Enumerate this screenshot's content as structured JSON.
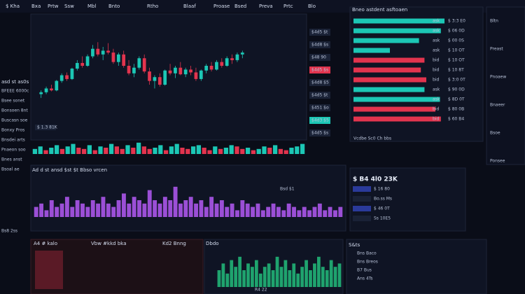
{
  "header": {
    "items": [
      "$ Kha",
      "Bxa",
      "Prtw",
      "Ssw",
      "Mbl",
      "Bnto",
      "Rtho",
      "Blaaf",
      "Proase",
      "Bsed",
      "Preva",
      "Prtc",
      "Blo"
    ]
  },
  "sidebar": {
    "title": "asd st as0s",
    "rows": [
      "BFEEE 6000c",
      "Bsee sonet",
      "Bonsoen 8nt",
      "Buscasn soe",
      "Bonxy Pros",
      "Bnsdei arts",
      "Pnaeon soo",
      "Bnes anst",
      "Bsoal ae"
    ],
    "footer": "Bs8 2ss"
  },
  "price_axis": [
    {
      "text": "$4d5 $t",
      "kind": "plain"
    },
    {
      "text": "$4d8 $s",
      "kind": "plain"
    },
    {
      "text": "$48 90",
      "kind": "plain"
    },
    {
      "text": "$4d5 $s",
      "kind": "red"
    },
    {
      "text": "$4d8 $5",
      "kind": "plain"
    },
    {
      "text": "$4d5 $t",
      "kind": "plain"
    },
    {
      "text": "$451 $o",
      "kind": "plain"
    },
    {
      "text": "$4d3 $5",
      "kind": "teal"
    },
    {
      "text": "$4d5 $s",
      "kind": "plain"
    }
  ],
  "chart_labels": {
    "main_tag": "$ 1.3 81K",
    "volume_title": "Ad d st ansd $st $t Bbso vrcen",
    "volume_tag": "Bsd $1",
    "bottom_left": "A4 # kalo",
    "bottom_mid": "Vbw #kkd bka",
    "bottom_mid2": "Kd2 Bnng",
    "bottom_chart": "Dbdo",
    "bottom_foot": "R4 22"
  },
  "order_book": {
    "title": "Bneo astdent asftoaen",
    "rows": [
      {
        "side": "ask",
        "depth": 100,
        "value": "$ 3:3 E0"
      },
      {
        "side": "ask",
        "depth": 96,
        "value": "$ 06 0D"
      },
      {
        "side": "ask",
        "depth": 72,
        "value": "$ 00 0S"
      },
      {
        "side": "ask",
        "depth": 40,
        "value": "$ 10 OT"
      },
      {
        "side": "bid",
        "depth": 78,
        "value": "$ 10 OT"
      },
      {
        "side": "bid",
        "depth": 74,
        "value": "$ 10 8T"
      },
      {
        "side": "bid",
        "depth": 80,
        "value": "$ 3:0 0T"
      },
      {
        "side": "ask",
        "depth": 78,
        "value": "$ 90 0D"
      },
      {
        "side": "ask",
        "depth": 95,
        "value": "$ 8D 0T"
      },
      {
        "side": "bid",
        "depth": 90,
        "value": "$ 80 0B"
      },
      {
        "side": "bid",
        "depth": 96,
        "value": "$ 60 B4"
      }
    ],
    "footer": "Vcdbe Sc0 Ch bbs"
  },
  "right_col": {
    "items": [
      "Bltn",
      "Preast",
      "Pnoaew",
      "Bnaeer",
      "Bsoe",
      "Ponsee"
    ]
  },
  "ticker": {
    "title": "$ B4 4l0 23K",
    "rows": [
      "$ 16 80",
      "Bo.ss Ms",
      "$ 46 0T",
      "Ss 10E5"
    ]
  },
  "bottom_list": {
    "title": "S&ts",
    "rows": [
      "Bns Baco",
      "Bns Breos",
      "B7 Bus",
      "Ans 4Ts"
    ]
  },
  "chart_data": [
    {
      "type": "candlestick",
      "ylim": [
        0,
        100
      ],
      "up_color": "#1cc7b5",
      "down_color": "#e2344e",
      "candles": [
        [
          30,
          34,
          26,
          32
        ],
        [
          32,
          38,
          30,
          36
        ],
        [
          36,
          40,
          33,
          34
        ],
        [
          34,
          45,
          33,
          44
        ],
        [
          44,
          52,
          42,
          50
        ],
        [
          50,
          53,
          44,
          46
        ],
        [
          46,
          58,
          45,
          57
        ],
        [
          57,
          66,
          55,
          63
        ],
        [
          63,
          70,
          58,
          60
        ],
        [
          60,
          72,
          59,
          70
        ],
        [
          70,
          82,
          68,
          78
        ],
        [
          78,
          85,
          70,
          72
        ],
        [
          72,
          80,
          66,
          76
        ],
        [
          76,
          84,
          72,
          74
        ],
        [
          74,
          78,
          62,
          64
        ],
        [
          64,
          74,
          60,
          72
        ],
        [
          72,
          76,
          58,
          60
        ],
        [
          60,
          66,
          50,
          52
        ],
        [
          52,
          62,
          48,
          58
        ],
        [
          58,
          70,
          56,
          68
        ],
        [
          68,
          72,
          52,
          54
        ],
        [
          54,
          58,
          40,
          44
        ],
        [
          44,
          50,
          36,
          48
        ],
        [
          48,
          52,
          38,
          40
        ],
        [
          40,
          56,
          39,
          55
        ],
        [
          55,
          62,
          50,
          52
        ],
        [
          52,
          60,
          47,
          58
        ],
        [
          58,
          64,
          50,
          51
        ],
        [
          51,
          58,
          48,
          56
        ],
        [
          56,
          60,
          50,
          53
        ],
        [
          53,
          58,
          44,
          46
        ],
        [
          46,
          56,
          44,
          55
        ],
        [
          55,
          62,
          52,
          60
        ],
        [
          60,
          64,
          54,
          56
        ],
        [
          56,
          66,
          55,
          64
        ],
        [
          64,
          68,
          58,
          60
        ],
        [
          60,
          70,
          59,
          68
        ],
        [
          68,
          72,
          62,
          66
        ],
        [
          66,
          74,
          64,
          72
        ],
        [
          72,
          76,
          68,
          74
        ]
      ]
    },
    {
      "type": "bar",
      "ylim": [
        0,
        10
      ],
      "colors": [
        "#1cc7b5",
        "#e2344e"
      ],
      "values": [
        4,
        6,
        3,
        5,
        7,
        4,
        6,
        8,
        5,
        4,
        7,
        3,
        6,
        5,
        8,
        6,
        4,
        7,
        5,
        9,
        6,
        4,
        5,
        7,
        3,
        6,
        8,
        5,
        4,
        6,
        7,
        5,
        3,
        6,
        4,
        5,
        7,
        6,
        4,
        5,
        3,
        4,
        6,
        5,
        7,
        4,
        3,
        5,
        6,
        8
      ]
    },
    {
      "type": "bar",
      "ylim": [
        0,
        10
      ],
      "color": "#9b4fd6",
      "values": [
        3,
        4,
        2,
        5,
        3,
        4,
        6,
        3,
        5,
        4,
        3,
        5,
        4,
        6,
        4,
        3,
        5,
        7,
        4,
        6,
        5,
        4,
        8,
        5,
        4,
        6,
        5,
        9,
        4,
        5,
        6,
        4,
        5,
        3,
        6,
        4,
        5,
        3,
        4,
        2,
        5,
        4,
        3,
        4,
        2,
        3,
        4,
        3,
        2,
        4,
        3,
        2,
        3,
        2,
        3,
        4,
        2,
        3,
        2,
        3
      ]
    },
    {
      "type": "bar",
      "ylim": [
        0,
        10
      ],
      "color": "#1fa36e",
      "values": [
        5,
        7,
        4,
        8,
        6,
        9,
        5,
        7,
        6,
        8,
        4,
        6,
        7,
        5,
        9,
        6,
        8,
        5,
        7,
        4,
        6,
        8,
        5,
        7,
        9,
        6,
        5,
        8,
        6,
        7
      ]
    }
  ]
}
